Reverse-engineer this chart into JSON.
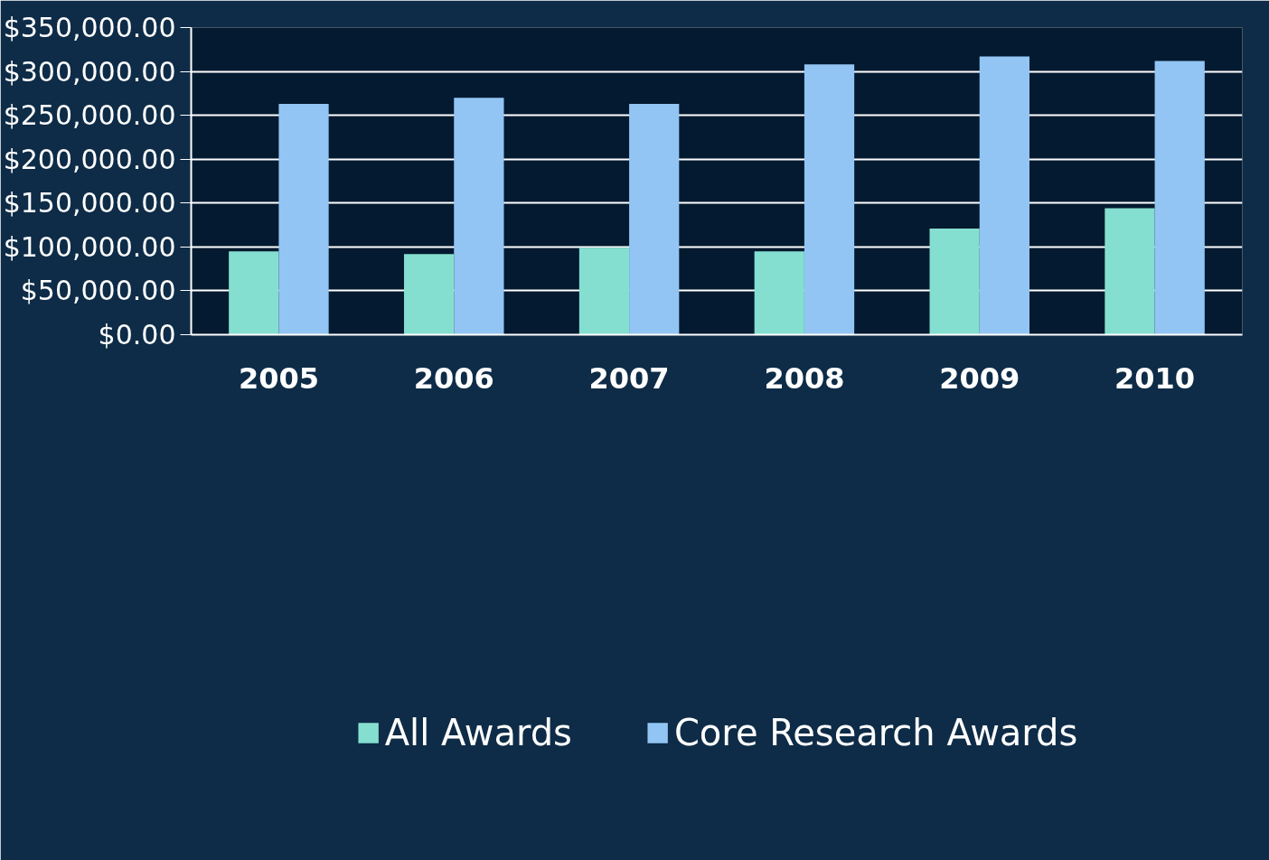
{
  "chart_data": {
    "type": "bar",
    "categories": [
      "2005",
      "2006",
      "2007",
      "2008",
      "2009",
      "2010"
    ],
    "series": [
      {
        "name": "All Awards",
        "color": "#85dfd0",
        "values": [
          95000,
          92000,
          99000,
          95000,
          121000,
          144000
        ]
      },
      {
        "name": "Core Research Awards",
        "color": "#92c5f3",
        "values": [
          263000,
          270000,
          263000,
          308000,
          317000,
          312000
        ]
      }
    ],
    "ylim": [
      0,
      350000
    ],
    "yticks": [
      {
        "value": 0,
        "label": "$0.00"
      },
      {
        "value": 50000,
        "label": "$50,000.00"
      },
      {
        "value": 100000,
        "label": "$100,000.00"
      },
      {
        "value": 150000,
        "label": "$150,000.00"
      },
      {
        "value": 200000,
        "label": "$200,000.00"
      },
      {
        "value": 250000,
        "label": "$250,000.00"
      },
      {
        "value": 300000,
        "label": "$300,000.00"
      },
      {
        "value": 350000,
        "label": "$350,000.00"
      }
    ],
    "grid": "y",
    "legend": "bottom"
  }
}
